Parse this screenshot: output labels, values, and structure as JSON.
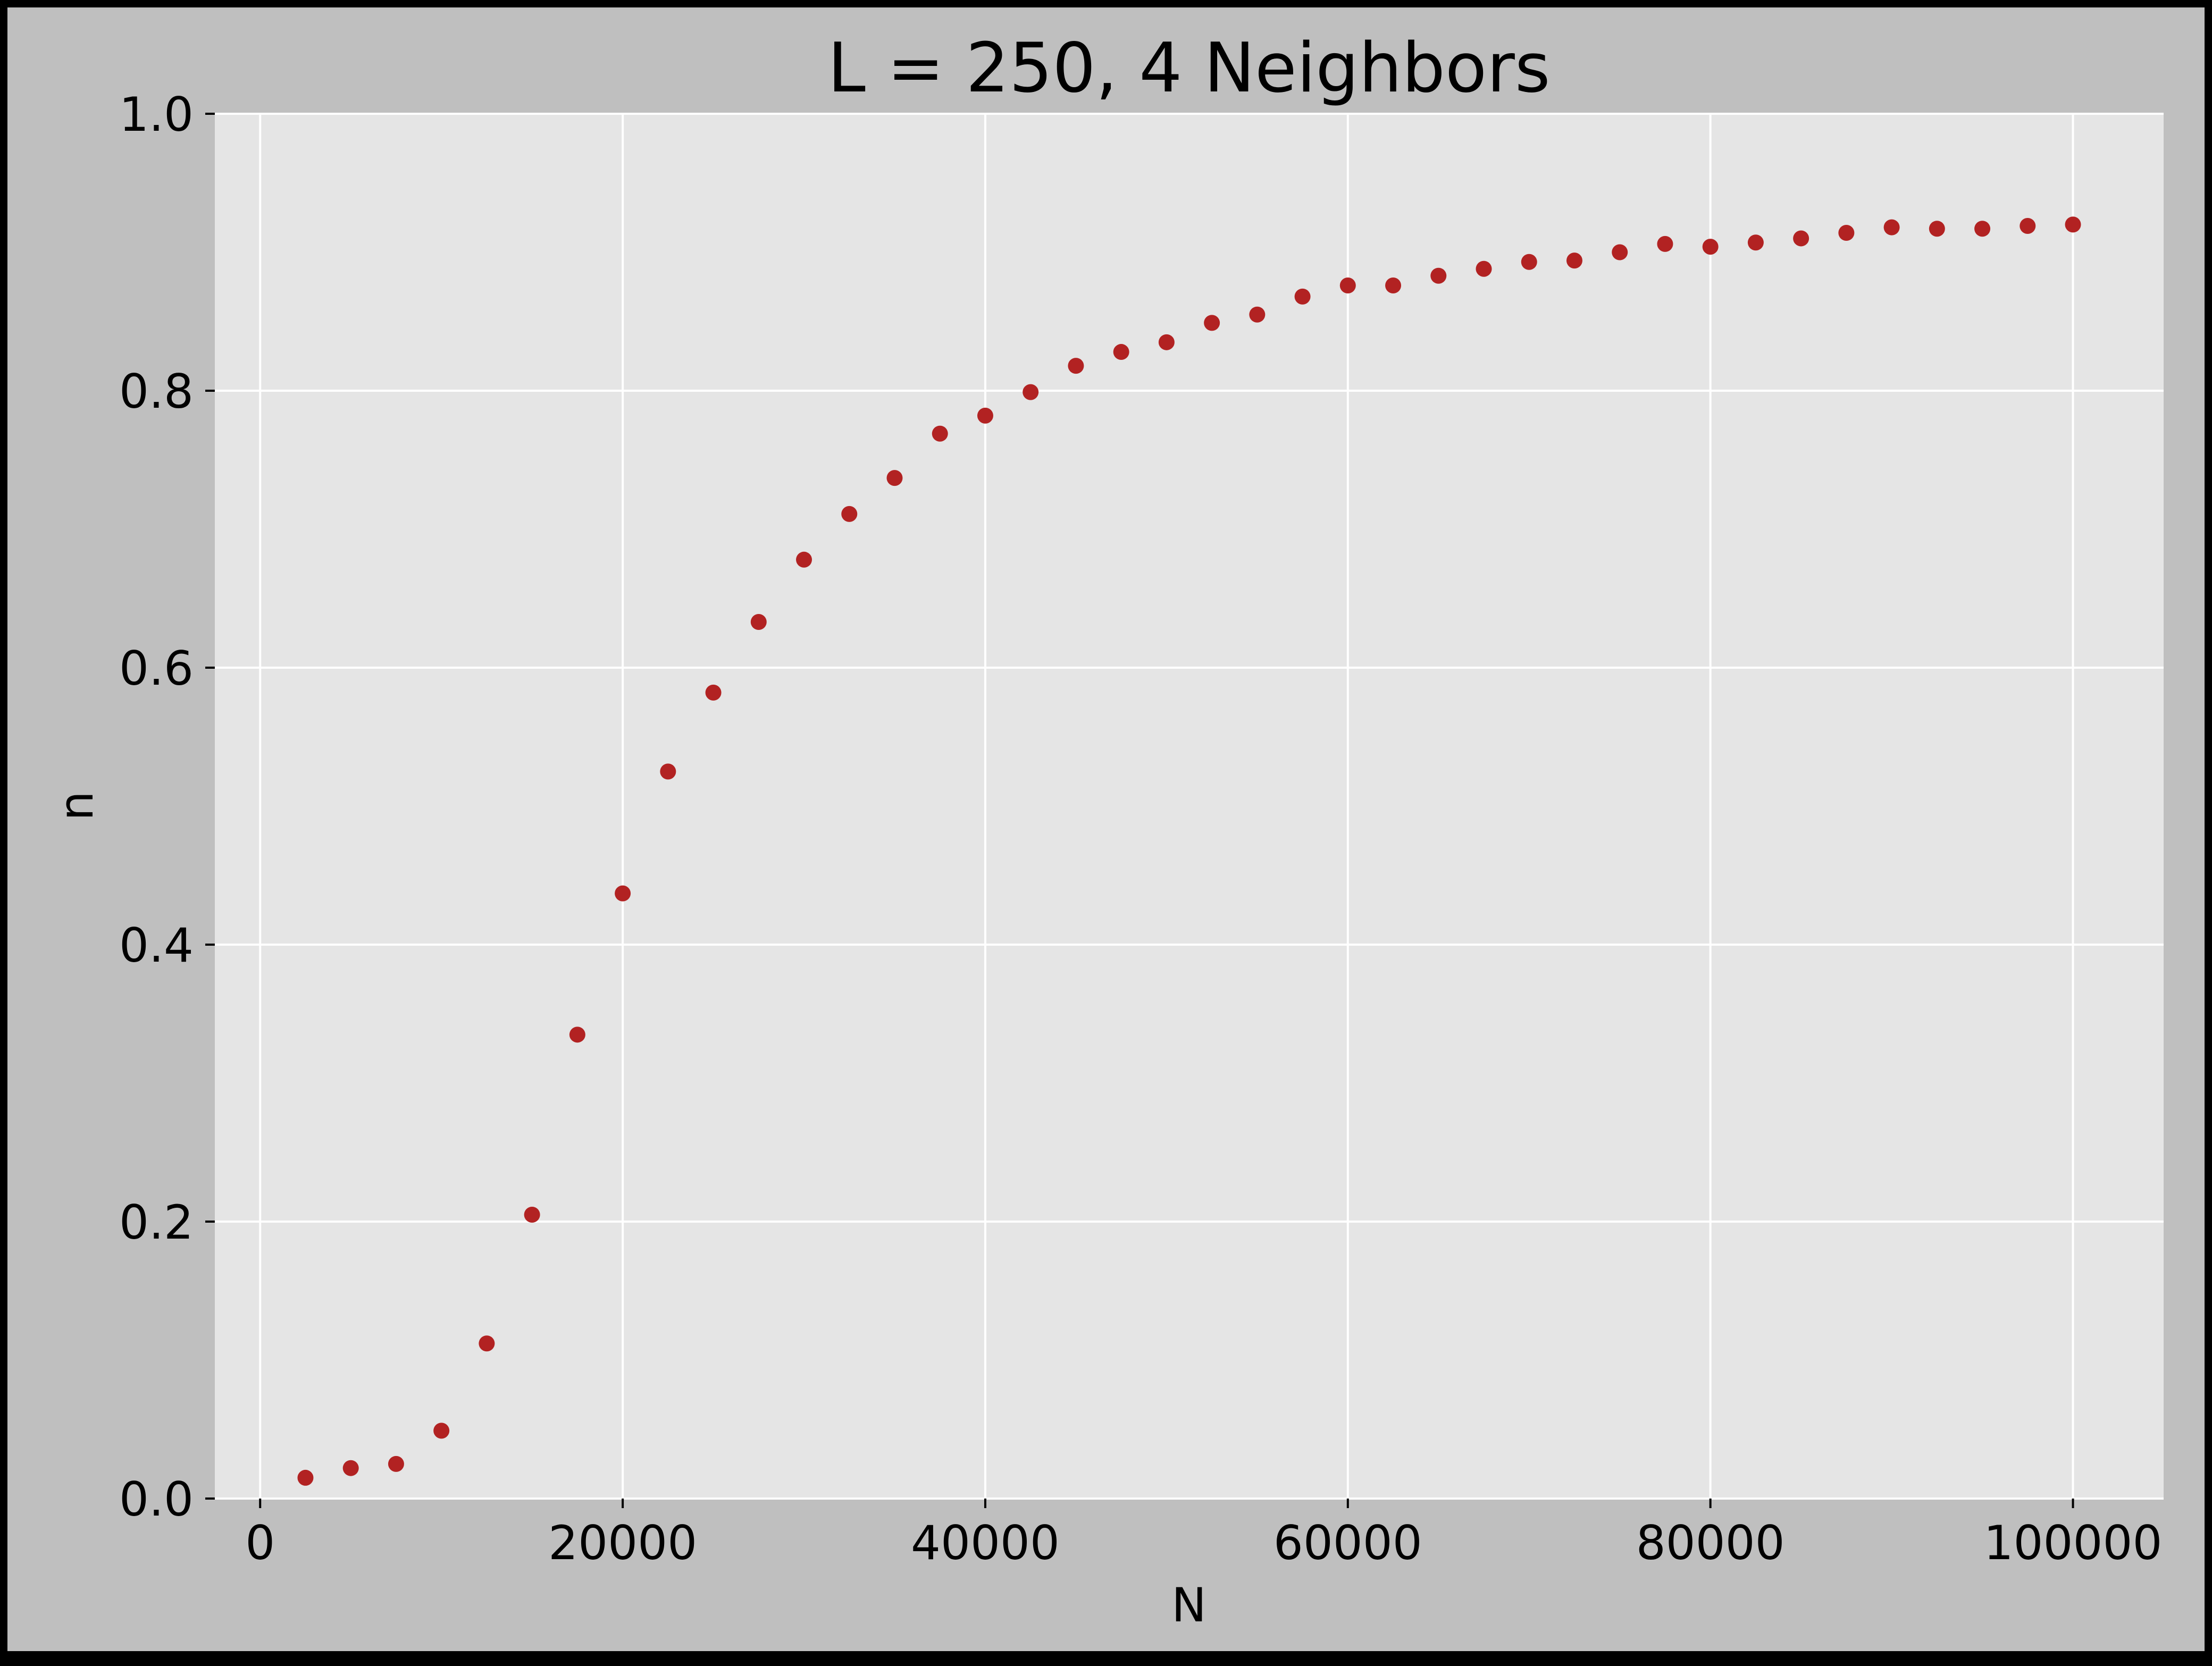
{
  "chart_data": {
    "type": "scatter",
    "title": "L = 250, 4 Neighbors",
    "xlabel": "N",
    "ylabel": "n",
    "xlim": [
      -2500,
      105000
    ],
    "ylim": [
      0.0,
      1.0
    ],
    "xticks": [
      0,
      20000,
      40000,
      60000,
      80000,
      100000
    ],
    "xtick_labels": [
      "0",
      "20000",
      "40000",
      "60000",
      "80000",
      "100000"
    ],
    "yticks": [
      0.0,
      0.2,
      0.4,
      0.6,
      0.8,
      1.0
    ],
    "ytick_labels": [
      "0.0",
      "0.2",
      "0.4",
      "0.6",
      "0.8",
      "1.0"
    ],
    "grid": true,
    "series": [
      {
        "color": "#b22222",
        "x": [
          2500,
          5000,
          7500,
          10000,
          12500,
          15000,
          17500,
          20000,
          22500,
          25000,
          27500,
          30000,
          32500,
          35000,
          37500,
          40000,
          42500,
          45000,
          47500,
          50000,
          52500,
          55000,
          57500,
          60000,
          62500,
          65000,
          67500,
          70000,
          72500,
          75000,
          77500,
          80000,
          82500,
          85000,
          87500,
          90000,
          92500,
          95000,
          97500,
          100000
        ],
        "y": [
          0.015,
          0.022,
          0.025,
          0.049,
          0.112,
          0.205,
          0.335,
          0.437,
          0.525,
          0.582,
          0.633,
          0.678,
          0.711,
          0.737,
          0.769,
          0.782,
          0.799,
          0.818,
          0.828,
          0.835,
          0.849,
          0.855,
          0.868,
          0.876,
          0.876,
          0.883,
          0.888,
          0.893,
          0.894,
          0.9,
          0.906,
          0.904,
          0.907,
          0.91,
          0.914,
          0.918,
          0.917,
          0.917,
          0.919,
          0.92
        ]
      }
    ],
    "colors": {
      "figure_background": "#bfbfbf",
      "plot_background": "#e5e5e5",
      "grid": "#ffffff",
      "marker": "#b22222"
    }
  }
}
